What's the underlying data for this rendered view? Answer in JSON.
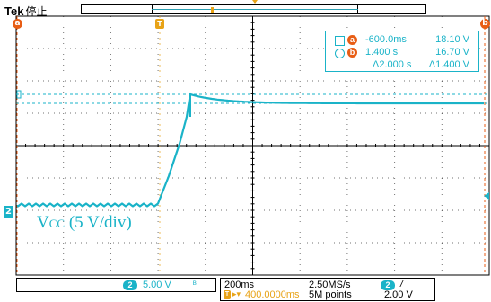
{
  "header": {
    "brand": "Tek",
    "run_state": "停止"
  },
  "markers": {
    "cursor_a": "a",
    "cursor_b": "b",
    "trigger": "T",
    "channel": "2"
  },
  "readout": {
    "rows": [
      {
        "icon": "square-icon",
        "badge": "a",
        "time": "-600.0ms",
        "volt": "18.10 V"
      },
      {
        "icon": "circle-icon",
        "badge": "b",
        "time": "1.400 s",
        "volt": "16.70 V"
      },
      {
        "icon": "",
        "badge": "",
        "time": "Δ2.000 s",
        "volt": "Δ1.400 V"
      }
    ]
  },
  "trace_label": {
    "main": "V",
    "sub": "CC",
    "rest": " (5 V/div)"
  },
  "bottom": {
    "ch_scale": "5.00 V",
    "bw_icon": "bandwidth-limit-icon",
    "timebase": "200ms",
    "sample_rate": "2.50MS/s",
    "trig_channel": "2",
    "trig_slope": "/",
    "trig_delay": "400.0000ms",
    "record_length": "5M points",
    "trig_level": "2.00 V"
  },
  "colors": {
    "trace": "#1ab3c8",
    "cursor": "#e85d14",
    "trigger": "#e8a317",
    "grid": "#000000",
    "background": "#ffffff"
  }
}
